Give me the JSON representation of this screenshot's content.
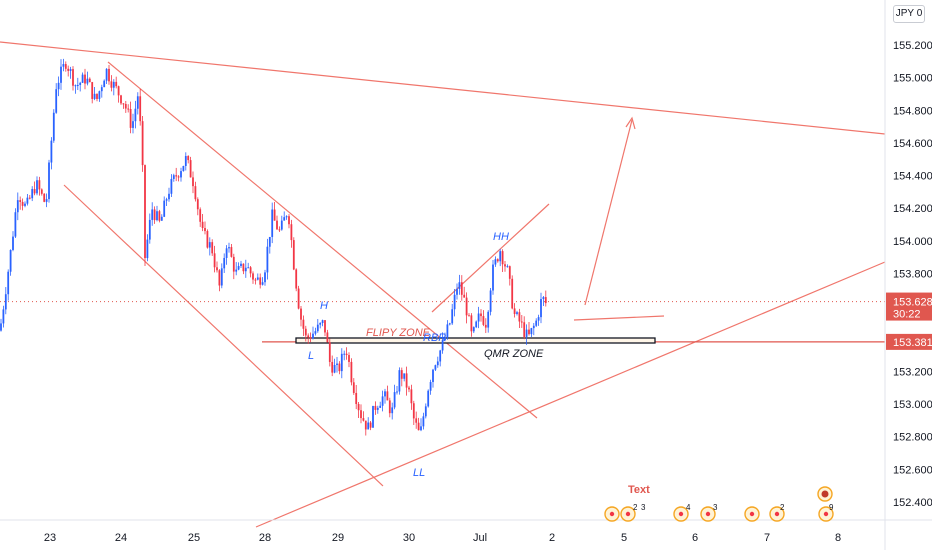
{
  "symbol_box": "JPY 0",
  "news_label": "Text",
  "chart_data": {
    "type": "candlestick",
    "y_ticks": [
      "155.200",
      "155.000",
      "154.800",
      "154.600",
      "154.400",
      "154.200",
      "154.000",
      "153.800",
      "153.600",
      "153.400",
      "153.200",
      "153.000",
      "152.800",
      "152.600",
      "152.400"
    ],
    "y_tick_values": [
      155.2,
      155.0,
      154.8,
      154.6,
      154.4,
      154.2,
      154.0,
      153.8,
      153.6,
      153.4,
      153.2,
      153.0,
      152.8,
      152.6,
      152.4
    ],
    "ylim": [
      152.28,
      155.42
    ],
    "x_ticks": [
      "23",
      "24",
      "25",
      "28",
      "29",
      "30",
      "Jul",
      "2",
      "5",
      "6",
      "7",
      "8"
    ],
    "last_price": {
      "value": "153.628",
      "countdown": "30:22",
      "color": "#e0574f"
    },
    "level_line": {
      "value": "153.381",
      "color": "#e0574f"
    },
    "colors": {
      "up": "#2962ff",
      "down": "#f23645",
      "drawing": "#f0766c",
      "annotation_blue": "#2962ff",
      "annotation_dark": "#131722",
      "zone_label": "#e0574f"
    },
    "annotations": [
      {
        "text": "FLIPY ZONE",
        "color": "#e0574f"
      },
      {
        "text": "RBR",
        "color": "#2962ff"
      },
      {
        "text": "QMR ZONE",
        "color": "#131722"
      },
      {
        "text": "H",
        "color": "#2962ff"
      },
      {
        "text": "L",
        "color": "#2962ff"
      },
      {
        "text": "HH",
        "color": "#2962ff"
      },
      {
        "text": "LL",
        "color": "#2962ff"
      }
    ],
    "news_badges": [
      {
        "label": "2"
      },
      {
        "label": "3"
      },
      {
        "label": "4"
      },
      {
        "label": "3"
      },
      {
        "label": "2"
      },
      {
        "label": "9"
      }
    ]
  }
}
